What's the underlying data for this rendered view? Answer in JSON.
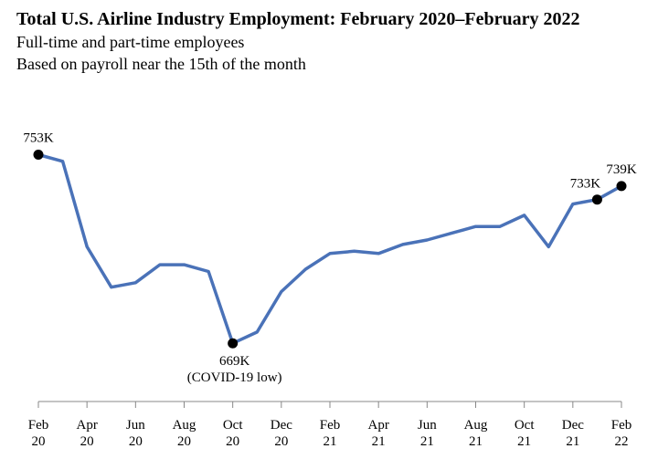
{
  "chart_data": {
    "type": "line",
    "title": "Total U.S. Airline Industry Employment: February 2020–February 2022",
    "subtitles": [
      "Full-time and part-time employees",
      "Based on payroll near the 15th of the month"
    ],
    "unit": "K",
    "series": [
      {
        "color": "#4a72b8",
        "values": [
          753,
          750,
          712,
          694,
          696,
          704,
          704,
          701,
          669,
          674,
          692,
          702,
          709,
          710,
          709,
          713,
          715,
          718,
          721,
          721,
          726,
          712,
          731,
          733,
          739
        ]
      }
    ],
    "ylim": [
      650,
      780
    ],
    "x_ticks": [
      {
        "index": 0,
        "month": "Feb",
        "year": "20"
      },
      {
        "index": 2,
        "month": "Apr",
        "year": "20"
      },
      {
        "index": 4,
        "month": "Jun",
        "year": "20"
      },
      {
        "index": 6,
        "month": "Aug",
        "year": "20"
      },
      {
        "index": 8,
        "month": "Oct",
        "year": "20"
      },
      {
        "index": 10,
        "month": "Dec",
        "year": "20"
      },
      {
        "index": 12,
        "month": "Feb",
        "year": "21"
      },
      {
        "index": 14,
        "month": "Apr",
        "year": "21"
      },
      {
        "index": 16,
        "month": "Jun",
        "year": "21"
      },
      {
        "index": 18,
        "month": "Aug",
        "year": "21"
      },
      {
        "index": 20,
        "month": "Oct",
        "year": "21"
      },
      {
        "index": 22,
        "month": "Dec",
        "year": "21"
      },
      {
        "index": 24,
        "month": "Feb",
        "year": "22"
      }
    ],
    "annotations": [
      {
        "index": 0,
        "text": "753K",
        "note": ""
      },
      {
        "index": 8,
        "text": "669K",
        "note": "(COVID-19 low)"
      },
      {
        "index": 23,
        "text": "733K",
        "note": ""
      },
      {
        "index": 24,
        "text": "739K",
        "note": ""
      }
    ],
    "grid": false,
    "legend": "none"
  }
}
